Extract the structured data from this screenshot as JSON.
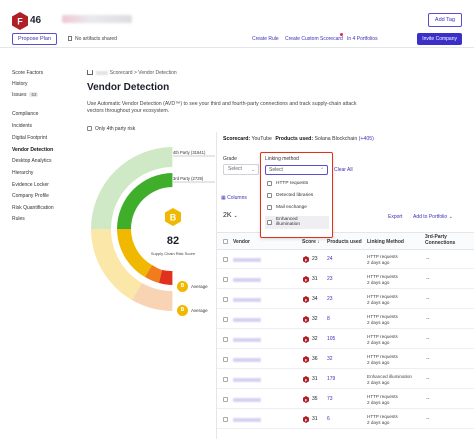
{
  "header": {
    "grade": "F",
    "score": "46",
    "add_tag": "Add Tag",
    "propose_plan": "Propose Plan",
    "artifacts": "No artifacts shared",
    "create_rule": "Create Rule",
    "create_custom_scorecard": "Create Custom Scorecard",
    "in_portfolios": "In 4 Portfolios",
    "invite_company": "Invite Company"
  },
  "sidebar": {
    "items": [
      {
        "label": "Score Factors"
      },
      {
        "label": "History"
      },
      {
        "label": "Issues",
        "badge": "63"
      },
      {
        "label": "Compliance"
      },
      {
        "label": "Incidents"
      },
      {
        "label": "Digital Footprint"
      },
      {
        "label": "Vendor Detection",
        "active": true
      },
      {
        "label": "Desktop Analytics"
      },
      {
        "label": "Hierarchy"
      },
      {
        "label": "Evidence Locker"
      },
      {
        "label": "Company Profile"
      },
      {
        "label": "Risk Quantification"
      },
      {
        "label": "Rules"
      }
    ]
  },
  "main": {
    "breadcrumb_scorecard": "Scorecard",
    "breadcrumb_sep": ">",
    "breadcrumb_current": "Vendor Detection",
    "title": "Vendor Detection",
    "description": "Use Automatic Vendor Detection (AVD™) to see your third and fourth-party connections and track supply-chain attack vectors throughout your ecosystem.",
    "only_4th_party": "Only 4th party risk",
    "ring_4th": "4th Party (31641)",
    "ring_3rd": "3rd Party (2729)",
    "center_grade": "B",
    "center_score": "82",
    "center_label": "Supply Chain Risk Score",
    "avg1_grade": "B",
    "avg1_label": "Average",
    "avg2_grade": "B",
    "avg2_label": "Average",
    "colors": {
      "green": "#3fae2a",
      "yellow": "#f0b800",
      "orange": "#f07c1e",
      "red": "#e0301e",
      "accent": "#3b2fc9"
    }
  },
  "panel": {
    "scorecard_label": "Scorecard:",
    "scorecard_value": "YouTube",
    "products_label": "Products used:",
    "products_value": "Solana Blockchain",
    "products_more": "(+405)",
    "grade_label": "Grade",
    "grade_select": "Select",
    "clear_all": "Clear All",
    "columns": "Columns",
    "count": "2K",
    "export": "Export",
    "add_to_portfolio": "Add to Portfolio",
    "headers": {
      "vendor": "Vendor",
      "score": "Score",
      "products": "Products used",
      "method": "Linking Method",
      "third_party": "3rd-Party Connections"
    },
    "rows": [
      {
        "grade": "F",
        "score": "23",
        "products": "24",
        "method": "HTTP requests",
        "ago": "2 days ago",
        "conn": "--"
      },
      {
        "grade": "F",
        "score": "31",
        "products": "23",
        "method": "HTTP requests",
        "ago": "2 days ago",
        "conn": "--"
      },
      {
        "grade": "F",
        "score": "34",
        "products": "23",
        "method": "HTTP requests",
        "ago": "2 days ago",
        "conn": "--"
      },
      {
        "grade": "F",
        "score": "32",
        "products": "8",
        "method": "HTTP requests",
        "ago": "2 days ago",
        "conn": "--"
      },
      {
        "grade": "F",
        "score": "32",
        "products": "105",
        "method": "HTTP requests",
        "ago": "2 days ago",
        "conn": "--"
      },
      {
        "grade": "F",
        "score": "36",
        "products": "32",
        "method": "HTTP requests",
        "ago": "2 days ago",
        "conn": "--"
      },
      {
        "grade": "F",
        "score": "31",
        "products": "179",
        "method": "Enhanced illumination",
        "ago": "2 days ago",
        "conn": "--"
      },
      {
        "grade": "F",
        "score": "35",
        "products": "73",
        "method": "HTTP requests",
        "ago": "2 days ago",
        "conn": "--"
      },
      {
        "grade": "F",
        "score": "31",
        "products": "6",
        "method": "HTTP requests",
        "ago": "2 days ago",
        "conn": "--"
      }
    ]
  },
  "dropdown": {
    "title": "Linking method",
    "value": "Select",
    "options": [
      "HTTP requests",
      "Detected libraries",
      "Mail exchange",
      "Enhanced illumination"
    ]
  }
}
